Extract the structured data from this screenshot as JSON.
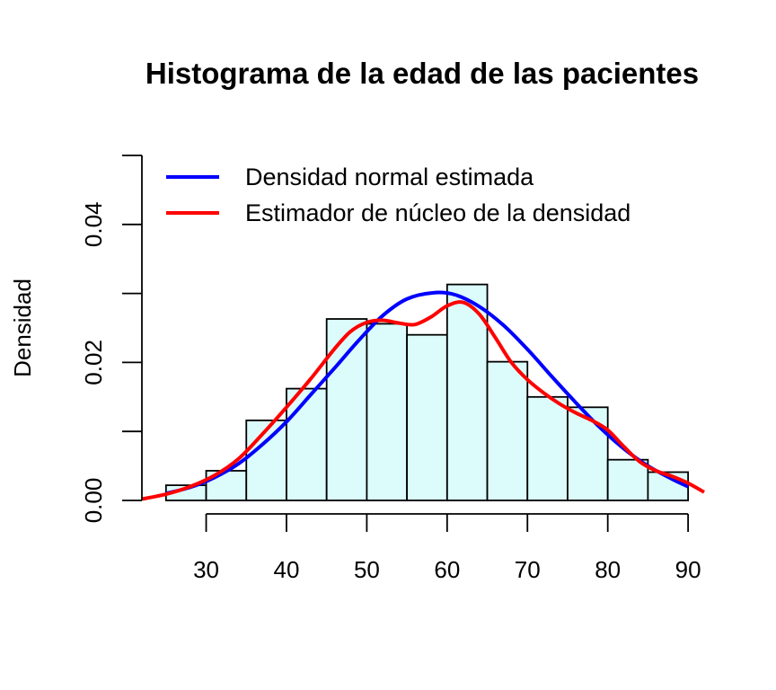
{
  "chart_data": {
    "type": "bar",
    "title": "Histograma de la edad de las pacientes",
    "xlabel": "",
    "ylabel": "Densidad",
    "xlim": [
      22,
      92
    ],
    "ylim": [
      0,
      0.05
    ],
    "x_ticks": [
      30,
      40,
      50,
      60,
      70,
      80,
      90
    ],
    "y_ticks": [
      0.0,
      0.01,
      0.02,
      0.03,
      0.04,
      0.05
    ],
    "y_tick_labels": [
      {
        "value": 0.0,
        "label": "0.00"
      },
      {
        "value": 0.02,
        "label": "0.02"
      },
      {
        "value": 0.04,
        "label": "0.04"
      }
    ],
    "bin_edges": [
      25,
      30,
      35,
      40,
      45,
      50,
      55,
      60,
      65,
      70,
      75,
      80,
      85,
      90
    ],
    "values": [
      0.0022,
      0.0043,
      0.0116,
      0.0162,
      0.0263,
      0.0256,
      0.024,
      0.0313,
      0.0201,
      0.015,
      0.0135,
      0.0059,
      0.0041
    ],
    "bar_fill": "#dcfcfc",
    "bar_stroke": "#000000",
    "grid": false,
    "legend_position": "top",
    "series": [
      {
        "name": "Densidad normal estimada",
        "type": "line",
        "color": "#0000ff",
        "x": [
          25,
          28,
          31,
          34,
          37,
          40,
          43,
          46,
          49,
          52,
          55,
          58.3,
          61,
          64,
          67,
          70,
          73,
          76,
          79,
          82,
          85,
          88,
          90
        ],
        "y": [
          0.001,
          0.0019,
          0.0033,
          0.0053,
          0.0081,
          0.0114,
          0.0153,
          0.0192,
          0.0232,
          0.0268,
          0.0292,
          0.0301,
          0.0298,
          0.0281,
          0.0254,
          0.0219,
          0.018,
          0.0142,
          0.0106,
          0.0075,
          0.005,
          0.0031,
          0.002
        ]
      },
      {
        "name": "Estimador de núcleo de la densidad",
        "type": "line",
        "color": "#ff0000",
        "x": [
          22,
          25,
          28,
          31,
          34,
          37,
          40,
          43,
          46,
          48,
          50,
          52,
          54,
          56,
          58,
          60,
          62,
          64,
          66,
          68,
          70,
          72,
          74,
          76,
          78,
          80,
          82,
          84,
          86,
          88,
          90,
          92
        ],
        "y": [
          0.0002,
          0.0009,
          0.002,
          0.0036,
          0.006,
          0.0096,
          0.0135,
          0.0176,
          0.022,
          0.0245,
          0.0258,
          0.0261,
          0.0257,
          0.0255,
          0.0266,
          0.0282,
          0.0287,
          0.027,
          0.0236,
          0.02,
          0.0175,
          0.0156,
          0.014,
          0.0127,
          0.0116,
          0.0102,
          0.0078,
          0.0056,
          0.0043,
          0.0035,
          0.0025,
          0.0012
        ]
      }
    ]
  }
}
